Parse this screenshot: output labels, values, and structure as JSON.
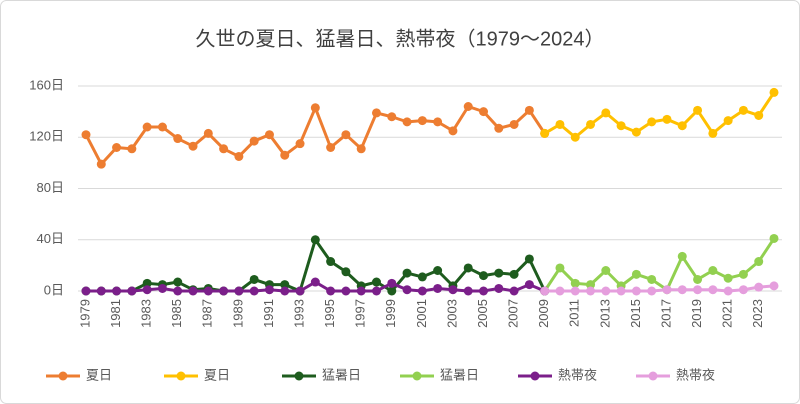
{
  "chart_data": {
    "type": "line",
    "title": "久世の夏日、猛暑日、熱帯夜（1979～2024）",
    "x": [
      1979,
      1980,
      1981,
      1982,
      1983,
      1984,
      1985,
      1986,
      1987,
      1988,
      1989,
      1990,
      1991,
      1992,
      1993,
      1994,
      1995,
      1996,
      1997,
      1998,
      1999,
      2000,
      2001,
      2002,
      2003,
      2004,
      2005,
      2006,
      2007,
      2008,
      2009,
      2010,
      2011,
      2012,
      2013,
      2014,
      2015,
      2016,
      2017,
      2018,
      2019,
      2020,
      2021,
      2022,
      2023,
      2024
    ],
    "xlim": [
      1979,
      2024
    ],
    "xticks": [
      1979,
      1981,
      1983,
      1985,
      1987,
      1989,
      1991,
      1993,
      1995,
      1997,
      1999,
      2001,
      2003,
      2005,
      2007,
      2009,
      2011,
      2013,
      2015,
      2017,
      2019,
      2021,
      2023
    ],
    "ylim": [
      0,
      160
    ],
    "yticks": [
      {
        "value": 0,
        "label": "0日"
      },
      {
        "value": 40,
        "label": "40日"
      },
      {
        "value": 80,
        "label": "80日"
      },
      {
        "value": 120,
        "label": "120日"
      },
      {
        "value": 160,
        "label": "160日"
      }
    ],
    "grid": true,
    "legend": "bottom",
    "series": [
      {
        "name": "夏日",
        "color": "#ed7d31",
        "values": [
          122,
          99,
          112,
          111,
          128,
          128,
          119,
          113,
          123,
          111,
          105,
          117,
          122,
          106,
          115,
          143,
          112,
          122,
          111,
          139,
          136,
          132,
          133,
          132,
          125,
          144,
          140,
          127,
          130,
          141,
          123,
          null,
          null,
          null,
          null,
          null,
          null,
          null,
          null,
          null,
          null,
          null,
          null,
          null,
          null,
          null
        ]
      },
      {
        "name": "夏日",
        "color": "#ffc000",
        "values": [
          null,
          null,
          null,
          null,
          null,
          null,
          null,
          null,
          null,
          null,
          null,
          null,
          null,
          null,
          null,
          null,
          null,
          null,
          null,
          null,
          null,
          null,
          null,
          null,
          null,
          null,
          null,
          null,
          null,
          null,
          123,
          130,
          120,
          130,
          139,
          129,
          124,
          132,
          134,
          129,
          141,
          123,
          133,
          141,
          137,
          155
        ]
      },
      {
        "name": "猛暑日",
        "color": "#1e5c1e",
        "values": [
          0,
          0,
          0,
          0,
          6,
          5,
          7,
          1,
          2,
          0,
          0,
          9,
          5,
          5,
          0,
          40,
          23,
          15,
          4,
          7,
          0,
          14,
          11,
          16,
          4,
          18,
          12,
          14,
          13,
          25,
          0,
          null,
          null,
          null,
          null,
          null,
          null,
          null,
          null,
          null,
          null,
          null,
          null,
          null,
          null,
          null
        ]
      },
      {
        "name": "猛暑日",
        "color": "#92d050",
        "values": [
          null,
          null,
          null,
          null,
          null,
          null,
          null,
          null,
          null,
          null,
          null,
          null,
          null,
          null,
          null,
          null,
          null,
          null,
          null,
          null,
          null,
          null,
          null,
          null,
          null,
          null,
          null,
          null,
          null,
          null,
          0,
          18,
          6,
          5,
          16,
          4,
          13,
          9,
          1,
          27,
          9,
          16,
          10,
          13,
          23,
          41
        ]
      },
      {
        "name": "熱帯夜",
        "color": "#7b1f8a",
        "values": [
          0,
          0,
          0,
          0,
          1,
          2,
          0,
          0,
          0,
          0,
          0,
          0,
          1,
          0,
          0,
          7,
          0,
          0,
          0,
          0,
          6,
          1,
          0,
          2,
          1,
          0,
          0,
          2,
          0,
          5,
          0,
          null,
          null,
          null,
          null,
          null,
          null,
          null,
          null,
          null,
          null,
          null,
          null,
          null,
          null,
          null
        ]
      },
      {
        "name": "熱帯夜",
        "color": "#e59edd",
        "values": [
          null,
          null,
          null,
          null,
          null,
          null,
          null,
          null,
          null,
          null,
          null,
          null,
          null,
          null,
          null,
          null,
          null,
          null,
          null,
          null,
          null,
          null,
          null,
          null,
          null,
          null,
          null,
          null,
          null,
          null,
          0,
          0,
          0,
          0,
          0,
          0,
          0,
          0,
          1,
          1,
          1,
          1,
          0,
          1,
          3,
          4
        ]
      }
    ]
  }
}
